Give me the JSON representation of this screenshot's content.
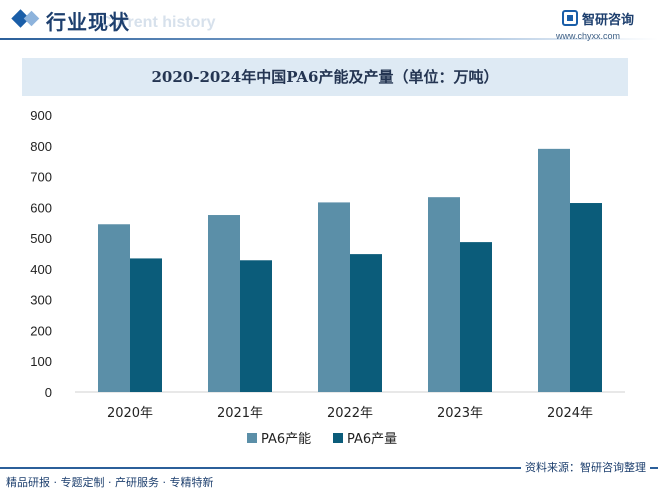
{
  "header": {
    "title": "行业现状",
    "subtitle": "Current history",
    "logo_name": "智研咨询",
    "logo_url": "www.chyxx.com"
  },
  "colors": {
    "capacity": "#5b8fa8",
    "production": "#0b5c7a",
    "accent": "#1a5ea8"
  },
  "chart_data": {
    "type": "bar",
    "title": "2020-2024年中国PA6产能及产量（单位：万吨）",
    "categories": [
      "2020年",
      "2021年",
      "2022年",
      "2023年",
      "2024年"
    ],
    "series": [
      {
        "name": "PA6产能",
        "values": [
          545,
          575,
          616,
          633,
          790
        ]
      },
      {
        "name": "PA6产量",
        "values": [
          434,
          428,
          448,
          487,
          614
        ]
      }
    ],
    "ylim": [
      0,
      900
    ],
    "yticks": [
      0,
      100,
      200,
      300,
      400,
      500,
      600,
      700,
      800,
      900
    ],
    "legend": "bottom-center",
    "grid": false,
    "xlabel": "",
    "ylabel": ""
  },
  "footer": {
    "left": "精品研报 · 专题定制 · 产研服务 · 专精特新",
    "source": "资料来源：智研咨询整理"
  }
}
